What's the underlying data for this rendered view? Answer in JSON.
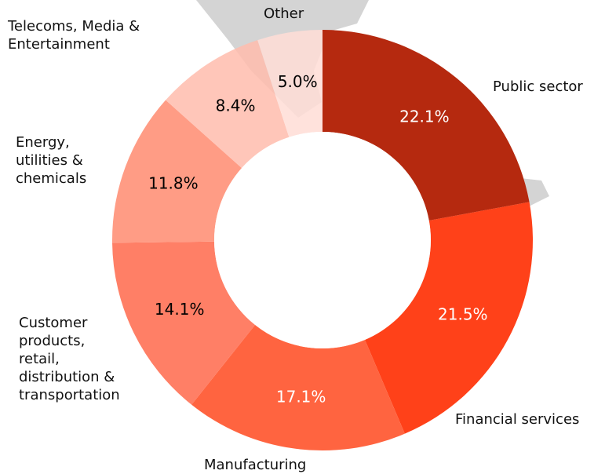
{
  "chart_data": {
    "type": "donut",
    "categories": [
      "Public sector",
      "Financial services",
      "Manufacturing",
      "Customer\nproducts,\nretail,\ndistribution &\ntransportation",
      "Energy,\nutilities &\nchemicals",
      "Telecoms, Media &\nEntertainment",
      "Other"
    ],
    "values": [
      22.1,
      21.5,
      17.1,
      14.1,
      11.8,
      8.4,
      5.0
    ],
    "value_labels": [
      "22.1%",
      "21.5%",
      "17.1%",
      "14.1%",
      "11.8%",
      "8.4%",
      "5.0%"
    ],
    "colors": [
      "#b5290f",
      "#ff4119",
      "#ff6440",
      "#ff7f66",
      "#ff9c85",
      "#ffbcad",
      "#ffddd6"
    ],
    "value_label_colors": [
      "#ffffff",
      "#ffffff",
      "#ffffff",
      "#000000",
      "#000000",
      "#000000",
      "#000000"
    ]
  }
}
